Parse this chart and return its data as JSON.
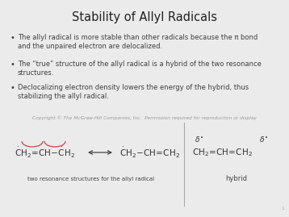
{
  "title": "Stability of Allyl Radicals",
  "title_fontsize": 10.5,
  "body_fontsize": 6.0,
  "bullet_points": [
    "The allyl radical is more stable than other radicals because the π bond\nand the unpaired electron are delocalized.",
    "The “true” structure of the allyl radical is a hybrid of the two resonance\nstructures.",
    "Declocalizing electron density lowers the energy of the hybrid, thus\nstabilizing the allyl radical."
  ],
  "copyright_text": "Copyright © The McGraw-Hill Companies, Inc.  Permission required for reproduction or display",
  "copyright_fontsize": 4.2,
  "bg_color": "#ebebeb",
  "text_color": "#404040",
  "page_number": "1"
}
